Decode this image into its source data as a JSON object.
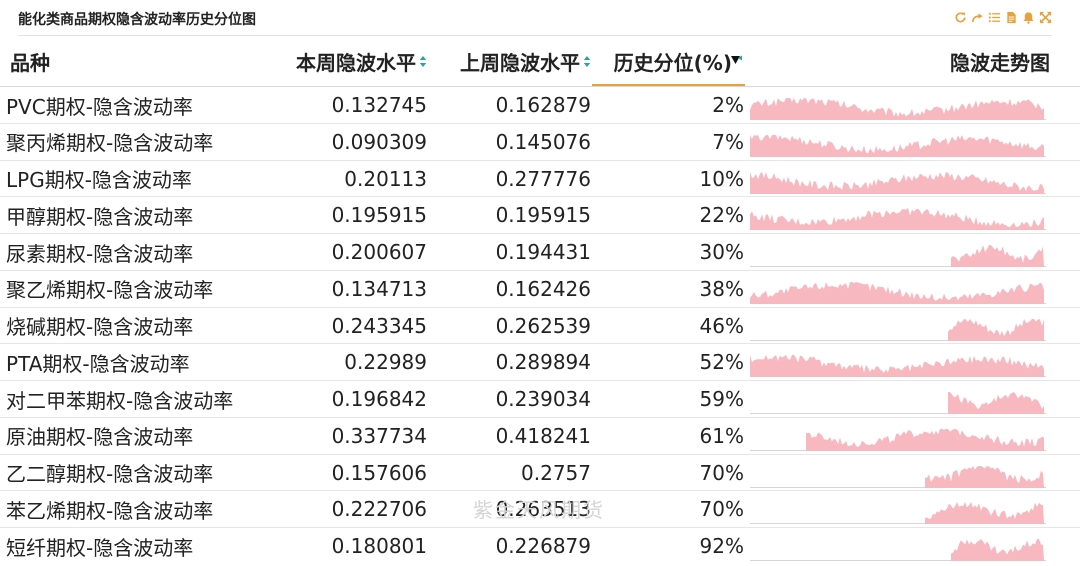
{
  "title": "能化类商品期权隐含波动率历史分位图",
  "toolbar": [
    "refresh-icon",
    "share-icon",
    "list-icon",
    "document-icon",
    "bell-icon",
    "expand-icon"
  ],
  "colors": {
    "accent": "#e8a23a",
    "sparkline": "#f7b8c0",
    "sort_icon": "#26a69a",
    "sorted_icon": "#111111"
  },
  "columns": {
    "variety": "品种",
    "current_iv": "本周隐波水平",
    "previous_iv": "上周隐波水平",
    "percentile": "历史分位(%)",
    "trend": "隐波走势图"
  },
  "sorted_column": "percentile",
  "watermark": "紫金天风期货",
  "rows": [
    {
      "name": "PVC期权-隐含波动率",
      "current": "0.132745",
      "previous": "0.162879",
      "percentile": "2%",
      "spark_start": 0.0
    },
    {
      "name": "聚丙烯期权-隐含波动率",
      "current": "0.090309",
      "previous": "0.145076",
      "percentile": "7%",
      "spark_start": 0.0
    },
    {
      "name": "LPG期权-隐含波动率",
      "current": "0.20113",
      "previous": "0.277776",
      "percentile": "10%",
      "spark_start": 0.0
    },
    {
      "name": "甲醇期权-隐含波动率",
      "current": "0.195915",
      "previous": "0.195915",
      "percentile": "22%",
      "spark_start": 0.0
    },
    {
      "name": "尿素期权-隐含波动率",
      "current": "0.200607",
      "previous": "0.194431",
      "percentile": "30%",
      "spark_start": 0.68
    },
    {
      "name": "聚乙烯期权-隐含波动率",
      "current": "0.134713",
      "previous": "0.162426",
      "percentile": "38%",
      "spark_start": 0.0
    },
    {
      "name": "烧碱期权-隐含波动率",
      "current": "0.243345",
      "previous": "0.262539",
      "percentile": "46%",
      "spark_start": 0.67
    },
    {
      "name": "PTA期权-隐含波动率",
      "current": "0.22989",
      "previous": "0.289894",
      "percentile": "52%",
      "spark_start": 0.0
    },
    {
      "name": "对二甲苯期权-隐含波动率",
      "current": "0.196842",
      "previous": "0.239034",
      "percentile": "59%",
      "spark_start": 0.67
    },
    {
      "name": "原油期权-隐含波动率",
      "current": "0.337734",
      "previous": "0.418241",
      "percentile": "61%",
      "spark_start": 0.19
    },
    {
      "name": "乙二醇期权-隐含波动率",
      "current": "0.157606",
      "previous": "0.2757",
      "percentile": "70%",
      "spark_start": 0.59
    },
    {
      "name": "苯乙烯期权-隐含波动率",
      "current": "0.222706",
      "previous": "0.263513",
      "percentile": "70%",
      "spark_start": 0.59
    },
    {
      "name": "短纤期权-隐含波动率",
      "current": "0.180801",
      "previous": "0.226879",
      "percentile": "92%",
      "spark_start": 0.68
    }
  ]
}
